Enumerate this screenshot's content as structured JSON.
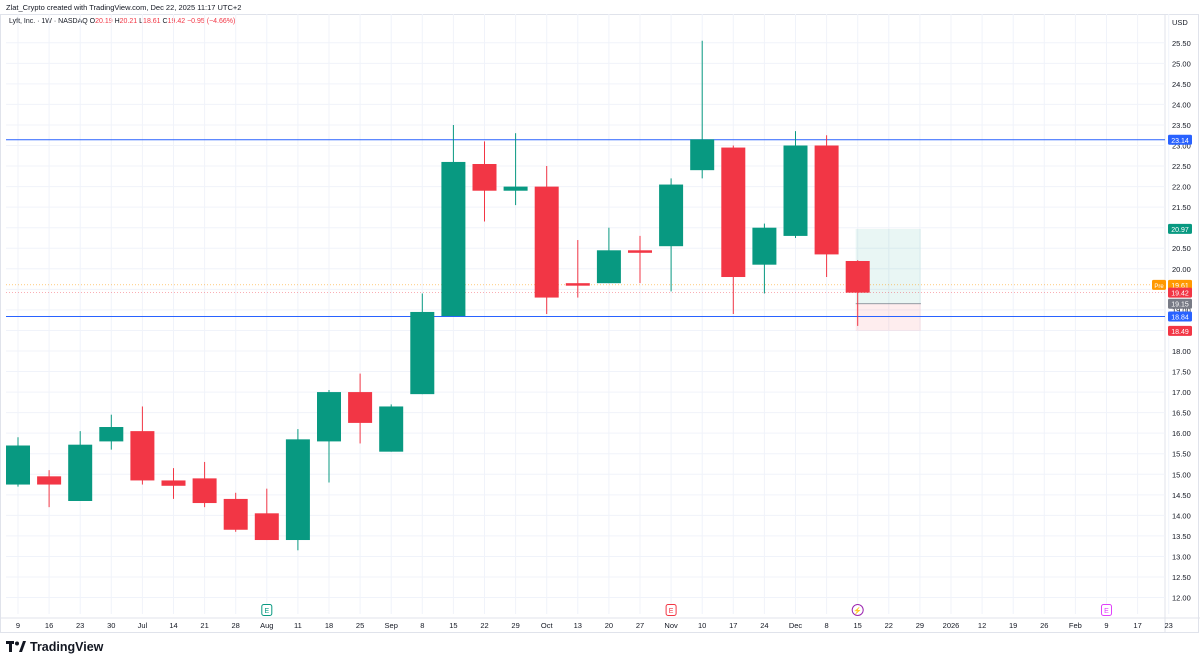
{
  "header": {
    "text": "Zlat_Crypto created with TradingView.com, Dec 22, 2025 11:17 UTC+2"
  },
  "legend": {
    "symbol": "Lyft, Inc. · 1W · NASDAQ",
    "o_label": "O",
    "o": "20.19",
    "h_label": "H",
    "h": "20.21",
    "l_label": "L",
    "l": "18.61",
    "c_label": "C",
    "c": "19.42",
    "chg": "−0.95 (−4.66%)"
  },
  "footer": {
    "brand": "TradingView"
  },
  "colors": {
    "up": "#089981",
    "down": "#f23645",
    "level": "#2962ff",
    "pre": "#ff9800",
    "grid": "#f0f3fa"
  },
  "chart_data": {
    "type": "candlestick",
    "currency": "USD",
    "ylim": [
      11.6,
      26.2
    ],
    "y_ticks": [
      "12.00",
      "12.50",
      "13.00",
      "13.50",
      "14.00",
      "14.50",
      "15.00",
      "15.50",
      "16.00",
      "16.50",
      "17.00",
      "17.50",
      "18.00",
      "18.50",
      "19.00",
      "19.50",
      "20.00",
      "20.50",
      "21.00",
      "21.50",
      "22.00",
      "22.50",
      "23.00",
      "23.50",
      "24.00",
      "24.50",
      "25.00",
      "25.50"
    ],
    "x_labels": [
      {
        "i": 0,
        "label": "9"
      },
      {
        "i": 1,
        "label": "16"
      },
      {
        "i": 2,
        "label": "23"
      },
      {
        "i": 3,
        "label": "30"
      },
      {
        "i": 4,
        "label": "Jul"
      },
      {
        "i": 5,
        "label": "14"
      },
      {
        "i": 6,
        "label": "21"
      },
      {
        "i": 7,
        "label": "28"
      },
      {
        "i": 8,
        "label": "Aug"
      },
      {
        "i": 9,
        "label": "11"
      },
      {
        "i": 10,
        "label": "18"
      },
      {
        "i": 11,
        "label": "25"
      },
      {
        "i": 12,
        "label": "Sep"
      },
      {
        "i": 13,
        "label": "8"
      },
      {
        "i": 14,
        "label": "15"
      },
      {
        "i": 15,
        "label": "22"
      },
      {
        "i": 16,
        "label": "29"
      },
      {
        "i": 17,
        "label": "Oct"
      },
      {
        "i": 18,
        "label": "13"
      },
      {
        "i": 19,
        "label": "20"
      },
      {
        "i": 20,
        "label": "27"
      },
      {
        "i": 21,
        "label": "Nov"
      },
      {
        "i": 22,
        "label": "10"
      },
      {
        "i": 23,
        "label": "17"
      },
      {
        "i": 24,
        "label": "24"
      },
      {
        "i": 25,
        "label": "Dec"
      },
      {
        "i": 26,
        "label": "8"
      },
      {
        "i": 27,
        "label": "15"
      },
      {
        "i": 28,
        "label": "22"
      },
      {
        "i": 29,
        "label": "29"
      },
      {
        "i": 30,
        "label": "2026"
      },
      {
        "i": 31,
        "label": "12"
      },
      {
        "i": 32,
        "label": "19"
      },
      {
        "i": 33,
        "label": "26"
      },
      {
        "i": 34,
        "label": "Feb"
      },
      {
        "i": 35,
        "label": "9"
      },
      {
        "i": 36,
        "label": "17"
      },
      {
        "i": 37,
        "label": "23"
      }
    ],
    "candles": [
      {
        "o": 14.75,
        "h": 15.9,
        "l": 14.7,
        "c": 15.7
      },
      {
        "o": 14.95,
        "h": 15.1,
        "l": 14.2,
        "c": 14.75
      },
      {
        "o": 14.35,
        "h": 16.05,
        "l": 14.35,
        "c": 15.72
      },
      {
        "o": 15.8,
        "h": 16.45,
        "l": 15.6,
        "c": 16.15
      },
      {
        "o": 16.05,
        "h": 16.65,
        "l": 14.75,
        "c": 14.85
      },
      {
        "o": 14.85,
        "h": 15.15,
        "l": 14.4,
        "c": 14.72
      },
      {
        "o": 14.9,
        "h": 15.3,
        "l": 14.2,
        "c": 14.3
      },
      {
        "o": 14.4,
        "h": 14.55,
        "l": 13.6,
        "c": 13.65
      },
      {
        "o": 14.05,
        "h": 14.65,
        "l": 13.4,
        "c": 13.4
      },
      {
        "o": 13.4,
        "h": 16.1,
        "l": 13.15,
        "c": 15.85
      },
      {
        "o": 15.8,
        "h": 17.05,
        "l": 14.8,
        "c": 17.0
      },
      {
        "o": 17.0,
        "h": 17.45,
        "l": 15.75,
        "c": 16.25
      },
      {
        "o": 15.55,
        "h": 16.7,
        "l": 15.55,
        "c": 16.65
      },
      {
        "o": 16.95,
        "h": 19.4,
        "l": 16.95,
        "c": 18.95
      },
      {
        "o": 18.85,
        "h": 23.5,
        "l": 18.85,
        "c": 22.6
      },
      {
        "o": 22.55,
        "h": 23.1,
        "l": 21.15,
        "c": 21.9
      },
      {
        "o": 21.9,
        "h": 23.3,
        "l": 21.55,
        "c": 22.0
      },
      {
        "o": 22.0,
        "h": 22.5,
        "l": 18.9,
        "c": 19.3
      },
      {
        "o": 19.65,
        "h": 20.7,
        "l": 19.3,
        "c": 19.6
      },
      {
        "o": 19.65,
        "h": 21.0,
        "l": 19.65,
        "c": 20.45
      },
      {
        "o": 20.45,
        "h": 20.8,
        "l": 19.65,
        "c": 20.4
      },
      {
        "o": 20.55,
        "h": 22.2,
        "l": 19.45,
        "c": 22.05
      },
      {
        "o": 22.4,
        "h": 25.55,
        "l": 22.2,
        "c": 23.15
      },
      {
        "o": 22.95,
        "h": 23.0,
        "l": 18.9,
        "c": 19.8
      },
      {
        "o": 20.1,
        "h": 21.1,
        "l": 19.4,
        "c": 21.0
      },
      {
        "o": 20.8,
        "h": 23.35,
        "l": 20.75,
        "c": 23.0
      },
      {
        "o": 23.0,
        "h": 23.25,
        "l": 19.8,
        "c": 20.35
      },
      {
        "o": 20.19,
        "h": 20.21,
        "l": 18.61,
        "c": 19.42
      }
    ],
    "levels": [
      23.14,
      18.84
    ],
    "price_lines": [
      19.61,
      19.42
    ],
    "position": {
      "entry": 19.15,
      "target": 20.97,
      "stop": 18.49,
      "start_i": 27,
      "end_i": 29
    },
    "price_labels": [
      {
        "value": 23.14,
        "text": "23.14",
        "color": "#2962ff"
      },
      {
        "value": 20.97,
        "text": "20.97",
        "color": "#089981"
      },
      {
        "value": 19.61,
        "text": "19.61",
        "color": "#ff9800",
        "prefix": "Pre"
      },
      {
        "value": 19.42,
        "text": "19.42",
        "color": "#f23645"
      },
      {
        "value": 19.15,
        "text": "19.15",
        "color": "#787b86"
      },
      {
        "value": 18.84,
        "text": "18.84",
        "color": "#2962ff"
      },
      {
        "value": 18.49,
        "text": "18.49",
        "color": "#f23645"
      }
    ],
    "events": [
      {
        "i": 8,
        "glyph": "E",
        "color": "#089981"
      },
      {
        "i": 21,
        "glyph": "E",
        "color": "#f23645"
      },
      {
        "i": 27,
        "glyph": "⚡",
        "color": "#9c27b0"
      },
      {
        "i": 35,
        "glyph": "E",
        "color": "#e040fb"
      }
    ]
  }
}
